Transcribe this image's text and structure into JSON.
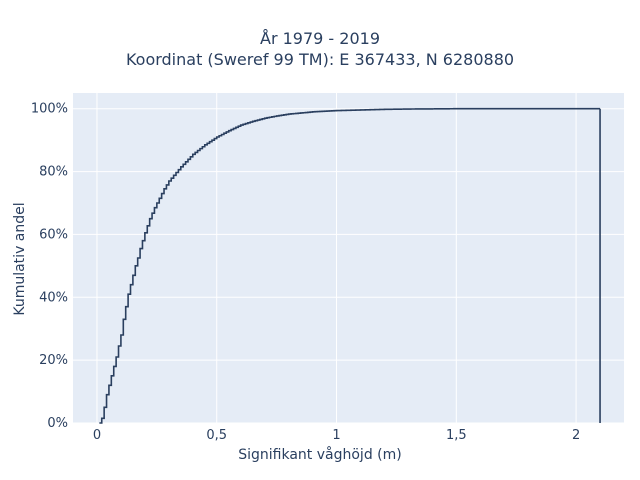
{
  "chart_data": {
    "type": "line",
    "title": "År 1979 - 2019",
    "subtitle": "Koordinat (Sweref 99 TM): E 367433, N 6280880",
    "xlabel": "Signifikant våghöjd (m)",
    "ylabel": "Kumulativ andel",
    "xlim": [
      -0.1,
      2.2
    ],
    "ylim": [
      0,
      1.05
    ],
    "x_ticks": [
      0,
      0.5,
      1,
      1.5,
      2
    ],
    "x_tick_labels": [
      "0",
      "0,5",
      "1",
      "1,5",
      "2"
    ],
    "y_ticks": [
      0,
      0.2,
      0.4,
      0.6,
      0.8,
      1
    ],
    "y_tick_labels": [
      "0%",
      "20%",
      "40%",
      "60%",
      "80%",
      "100%"
    ],
    "grid": true,
    "line_shape": "step",
    "step_width": 0.01,
    "colors": {
      "line": "#2a3f5f",
      "plot_bg": "#e5ecf6",
      "grid": "#ffffff"
    },
    "series": [
      {
        "x": [
          0.01,
          0.02,
          0.03,
          0.04,
          0.05,
          0.06,
          0.07,
          0.08,
          0.09,
          0.1,
          0.11,
          0.12,
          0.13,
          0.14,
          0.15,
          0.16,
          0.17,
          0.18,
          0.19,
          0.2,
          0.22,
          0.24,
          0.26,
          0.28,
          0.3,
          0.35,
          0.4,
          0.45,
          0.5,
          0.55,
          0.6,
          0.65,
          0.7,
          0.75,
          0.8,
          0.9,
          1.0,
          1.1,
          1.2,
          1.3,
          1.5,
          1.8,
          2.1
        ],
        "y": [
          0.0,
          0.015,
          0.05,
          0.09,
          0.12,
          0.15,
          0.18,
          0.21,
          0.245,
          0.28,
          0.33,
          0.37,
          0.41,
          0.44,
          0.47,
          0.5,
          0.525,
          0.555,
          0.58,
          0.605,
          0.65,
          0.685,
          0.715,
          0.745,
          0.77,
          0.815,
          0.855,
          0.885,
          0.91,
          0.93,
          0.948,
          0.96,
          0.97,
          0.977,
          0.983,
          0.99,
          0.994,
          0.996,
          0.998,
          0.999,
          1.0,
          1.0,
          1.0
        ]
      }
    ]
  }
}
